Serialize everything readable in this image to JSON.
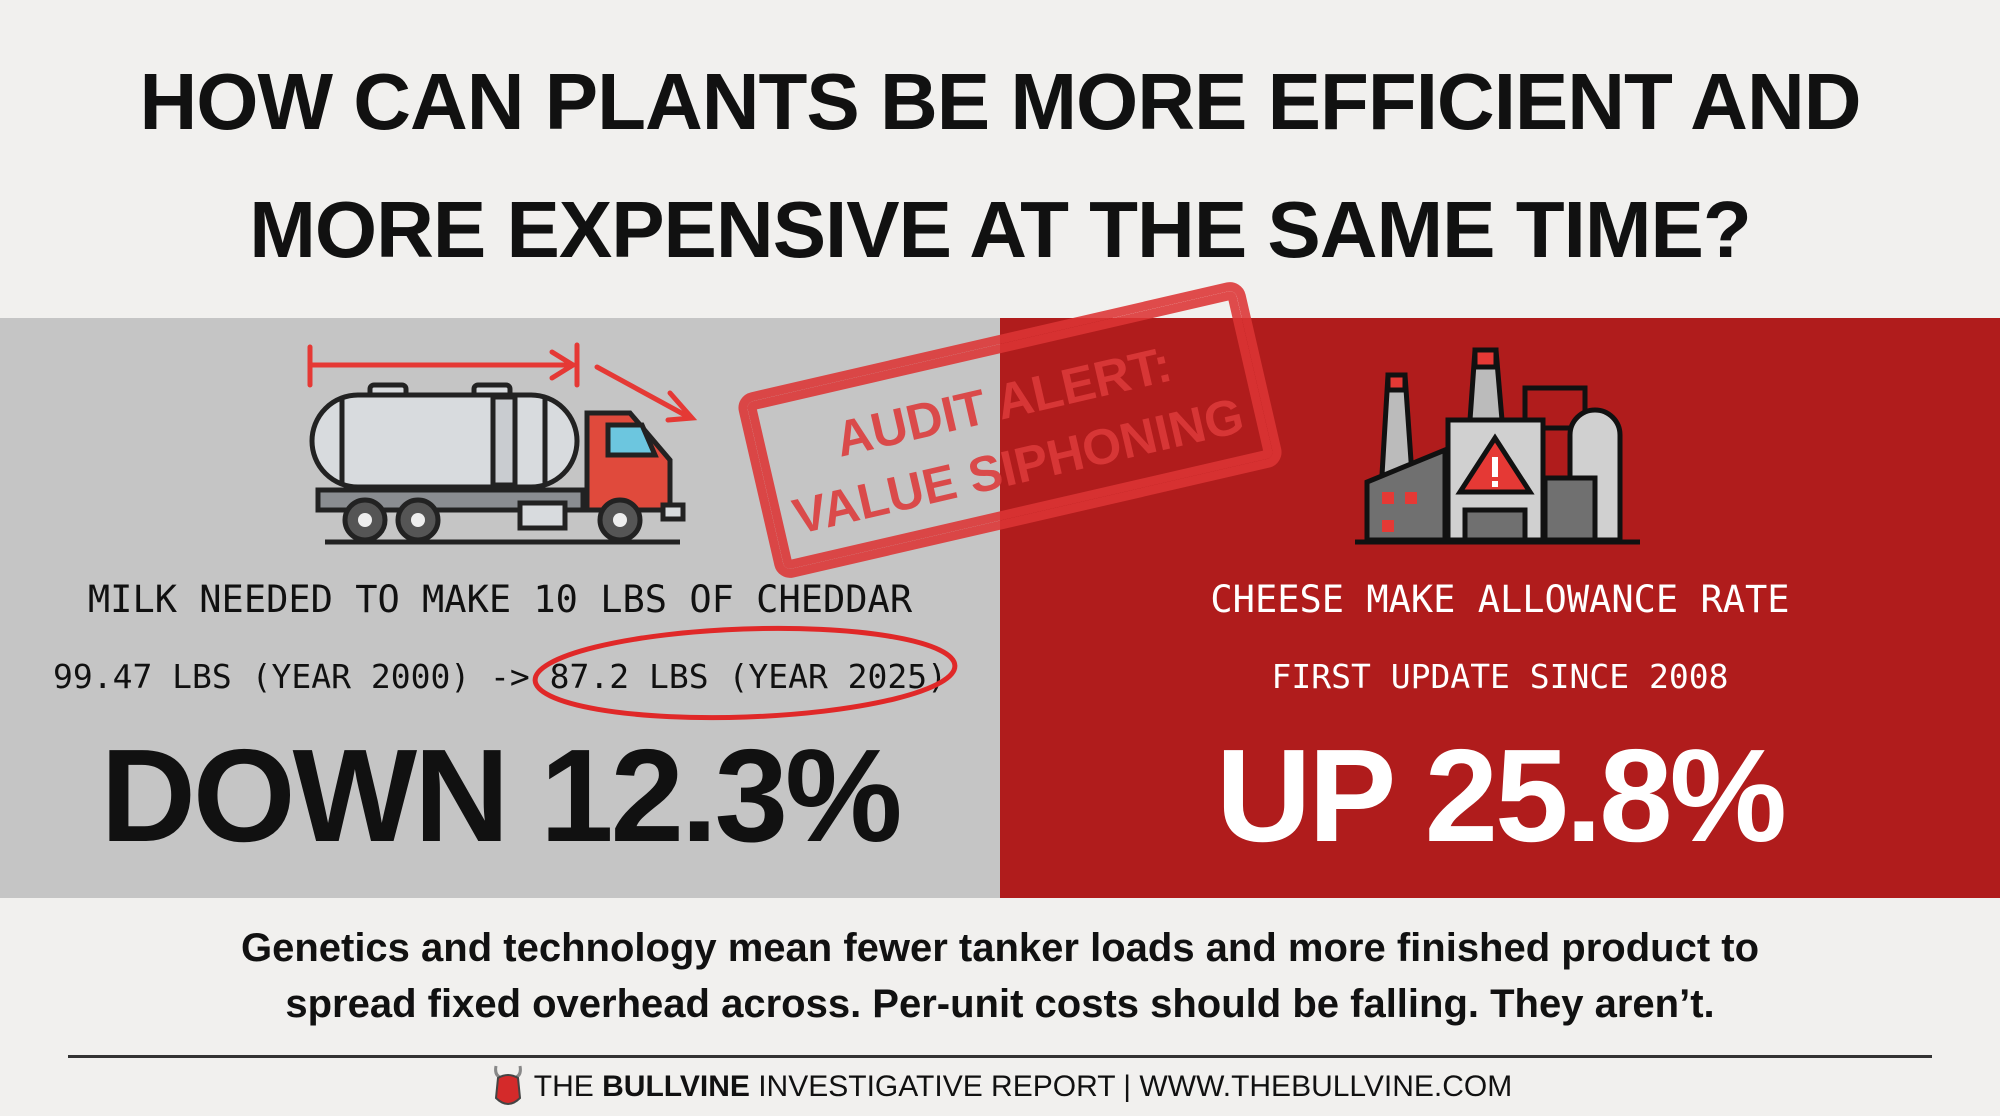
{
  "title": {
    "line1": "HOW CAN PLANTS BE MORE EFFICIENT AND",
    "line2": "MORE EXPENSIVE AT THE SAME TIME?"
  },
  "left_panel": {
    "icon": "milk-tanker-truck-icon",
    "label": "MILK NEEDED TO MAKE 10 LBS OF CHEDDAR",
    "comparison_before": "99.47 LBS (YEAR 2000) ->",
    "comparison_after": "87.2 LBS (YEAR 2025)",
    "headline": "DOWN 12.3%",
    "background_color": "#c5c5c5"
  },
  "right_panel": {
    "icon": "factory-warning-icon",
    "label": "CHEESE MAKE ALLOWANCE RATE",
    "sublabel": "FIRST UPDATE SINCE 2008",
    "headline": "UP 25.8%",
    "background_color": "#b01c1c"
  },
  "stamp": {
    "line1": "AUDIT ALERT:",
    "line2": "VALUE SIPHONING",
    "color": "#dd3535"
  },
  "body": {
    "line1": "Genetics and technology mean fewer tanker loads and more finished product to",
    "line2": "spread fixed overhead across. Per-unit costs should be falling. They aren’t."
  },
  "footer": {
    "logo": "bull-head-logo",
    "prefix": "THE ",
    "brand": "BULLVINE",
    "suffix": " INVESTIGATIVE REPORT | WWW.THEBULLVINE.COM"
  }
}
